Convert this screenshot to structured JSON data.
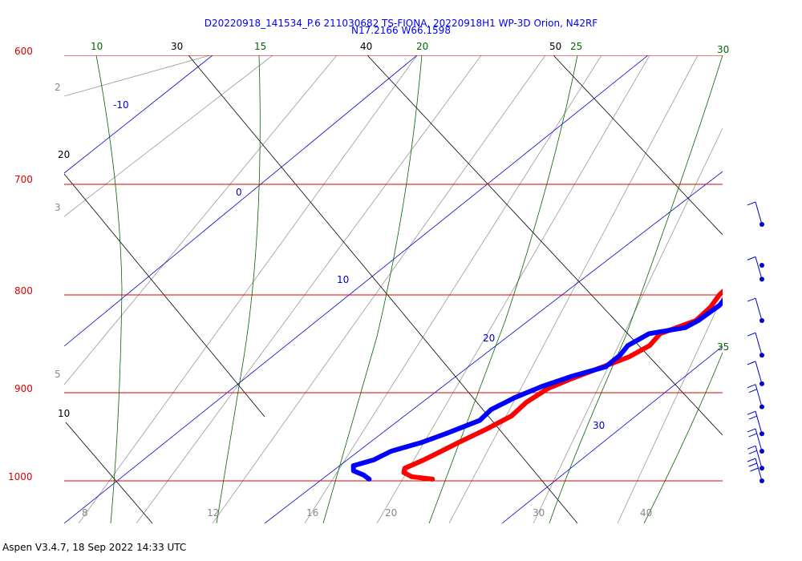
{
  "chart_data": {
    "type": "line",
    "title": "D20220918_141534_P.6 211030682 TS-FIONA, 20220918H1 WP-3D Orion, N42RF",
    "subtitle": "N17.2166 W66.1598",
    "pressure_labels": [
      "600",
      "700",
      "800",
      "900",
      "1000"
    ],
    "pressure_ylim": [
      1040,
      600
    ],
    "temperature_labels": [
      "12",
      "16",
      "20",
      "30",
      "40"
    ],
    "mixing_ratio_labels": [
      "8",
      "2",
      "3",
      "5"
    ],
    "dry_adiabat_labels": [
      "20",
      "10"
    ],
    "theta_e_labels": [
      "30",
      "40",
      "50"
    ],
    "isotherm_labels": [
      "-10",
      "0",
      "10",
      "20",
      "30"
    ],
    "moist_adiabat_labels": [
      "10",
      "15",
      "20",
      "25",
      "30",
      "35"
    ],
    "series": [
      {
        "color": "#ff0000",
        "points": [
          [
            24.4,
            998
          ],
          [
            23.3,
            995
          ],
          [
            22.7,
            990
          ],
          [
            22.5,
            985
          ],
          [
            22.9,
            975
          ],
          [
            23.2,
            965
          ],
          [
            23.5,
            955
          ],
          [
            24.0,
            940
          ],
          [
            24.4,
            925
          ],
          [
            24.3,
            910
          ],
          [
            24.5,
            895
          ],
          [
            25.0,
            885
          ],
          [
            25.6,
            875
          ],
          [
            26.4,
            862
          ],
          [
            26.7,
            850
          ],
          [
            26.5,
            838
          ],
          [
            27.4,
            825
          ],
          [
            27.3,
            812
          ],
          [
            27.0,
            800
          ],
          [
            26.9,
            788
          ],
          [
            27.2,
            775
          ],
          [
            27.4,
            766
          ],
          [
            27.9,
            760
          ],
          [
            28.4,
            757
          ]
        ]
      },
      {
        "color": "#0000ff",
        "points": [
          [
            21.5,
            998
          ],
          [
            21.0,
            993
          ],
          [
            20.3,
            988
          ],
          [
            20.0,
            982
          ],
          [
            20.6,
            975
          ],
          [
            20.9,
            965
          ],
          [
            21.8,
            955
          ],
          [
            22.4,
            945
          ],
          [
            23.2,
            930
          ],
          [
            23.1,
            918
          ],
          [
            23.5,
            905
          ],
          [
            24.1,
            893
          ],
          [
            24.9,
            882
          ],
          [
            25.9,
            872
          ],
          [
            25.9,
            860
          ],
          [
            25.7,
            850
          ],
          [
            26.0,
            838
          ],
          [
            27.3,
            832
          ],
          [
            27.5,
            825
          ],
          [
            27.6,
            810
          ],
          [
            27.4,
            800
          ],
          [
            27.3,
            790
          ],
          [
            27.5,
            778
          ],
          [
            27.3,
            766
          ],
          [
            28.1,
            762
          ],
          [
            28.0,
            756
          ]
        ]
      }
    ],
    "wind_barbs": [
      {
        "pressure": 735,
        "speed_kt": 10
      },
      {
        "pressure": 785,
        "speed_kt": 10
      },
      {
        "pressure": 825,
        "speed_kt": 10
      },
      {
        "pressure": 860,
        "speed_kt": 10
      },
      {
        "pressure": 890,
        "speed_kt": 10
      },
      {
        "pressure": 915,
        "speed_kt": 15
      },
      {
        "pressure": 945,
        "speed_kt": 15
      },
      {
        "pressure": 965,
        "speed_kt": 15
      },
      {
        "pressure": 985,
        "speed_kt": 15
      },
      {
        "pressure": 1000,
        "speed_kt": 25
      }
    ],
    "footer": "Aspen V3.4.7, 18 Sep 2022  14:33 UTC"
  },
  "colors": {
    "isobar": "#dd0000",
    "isotherm": "#0000cc",
    "dry_adiabat": "#000000",
    "mixing_ratio": "#888888",
    "moist_adiabat": "#006600",
    "temperature": "#ff0000",
    "dewpoint": "#0000ff",
    "title": "#0000ff"
  }
}
